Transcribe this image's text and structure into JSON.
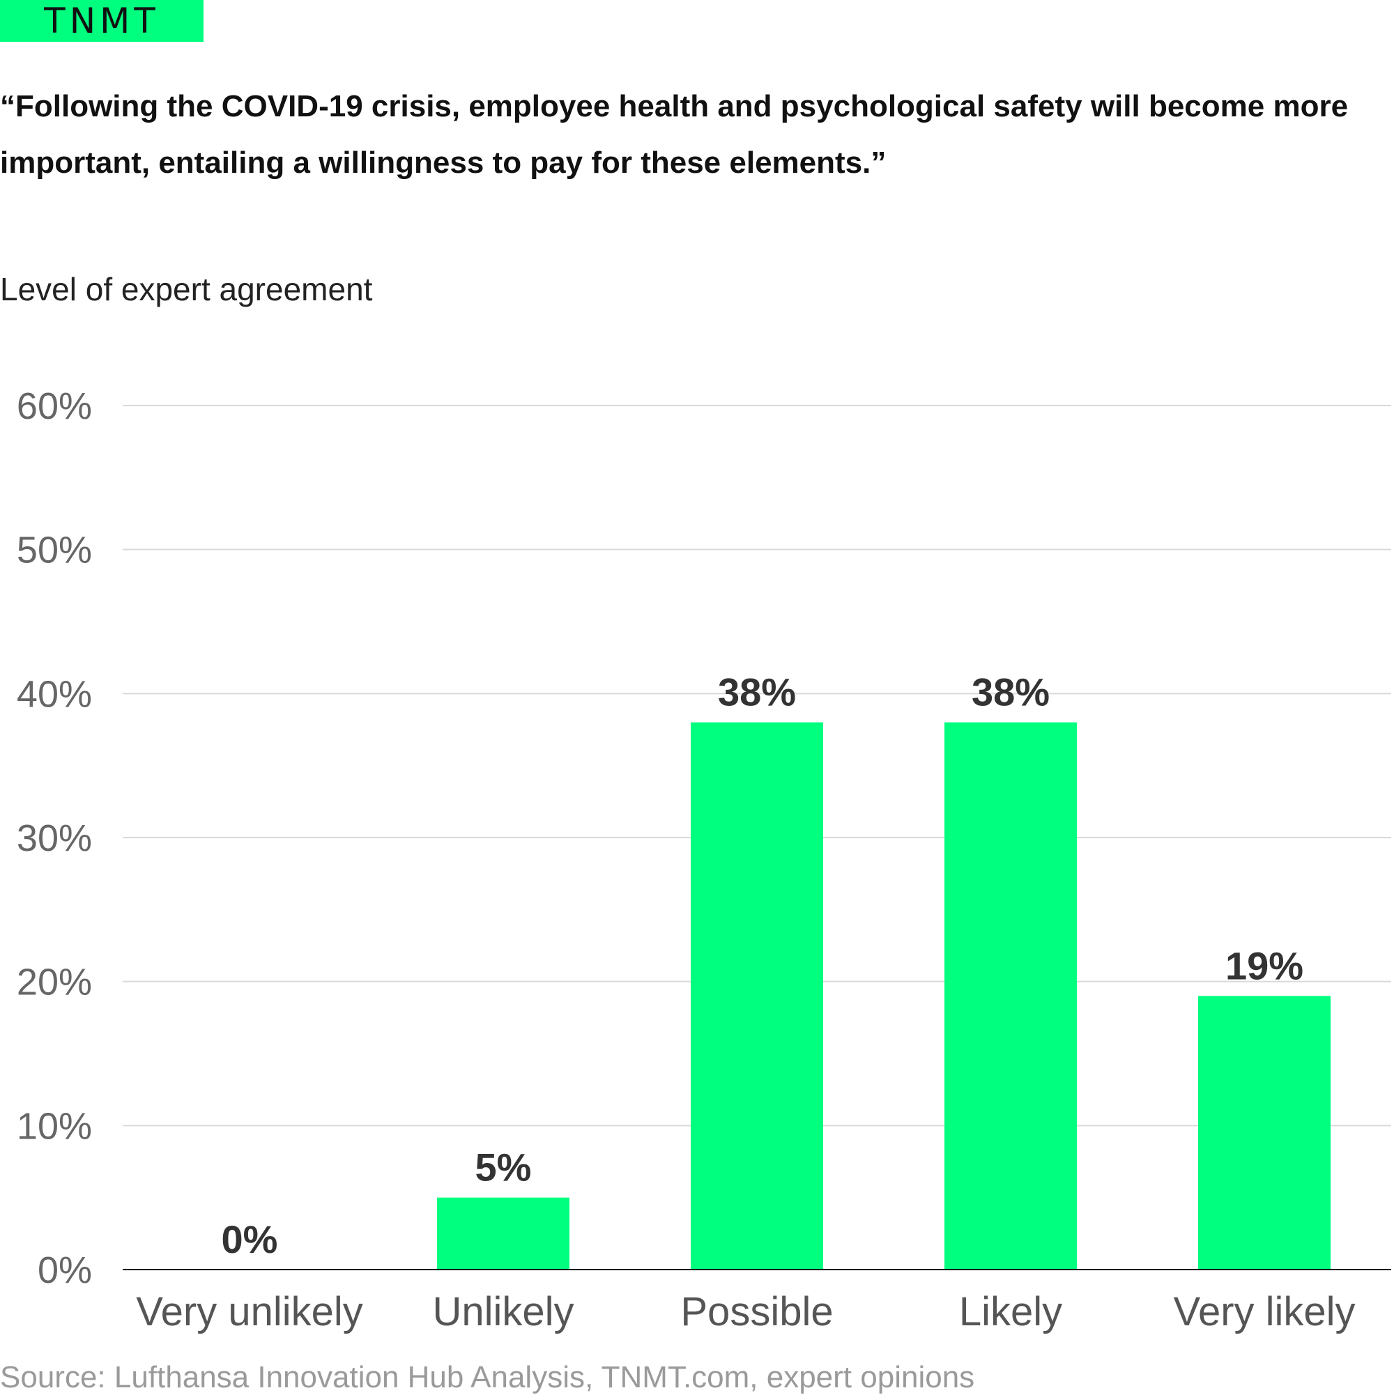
{
  "brand": {
    "logo_text": "TNMT",
    "color": "#00ff7f"
  },
  "title": "“Following the COVID-19 crisis, employee health and psychological safety will become more important, entailing a willingness to pay for these elements.”",
  "subtitle": "Level of expert agreement",
  "source": "Source: Lufthansa Innovation Hub Analysis, TNMT.com, expert opinions",
  "chart_data": {
    "type": "bar",
    "categories": [
      "Very unlikely",
      "Unlikely",
      "Possible",
      "Likely",
      "Very likely"
    ],
    "values": [
      0,
      5,
      38,
      38,
      19
    ],
    "value_labels": [
      "0%",
      "5%",
      "38%",
      "38%",
      "19%"
    ],
    "ylim": [
      0,
      60
    ],
    "yticks": [
      0,
      10,
      20,
      30,
      40,
      50,
      60
    ],
    "ytick_labels": [
      "0%",
      "10%",
      "20%",
      "30%",
      "40%",
      "50%",
      "60%"
    ],
    "xlabel": "",
    "ylabel": "",
    "grid": true,
    "bar_color": "#00ff7f",
    "gridline_color": "#d9d9d9",
    "axis_color": "#111111"
  }
}
